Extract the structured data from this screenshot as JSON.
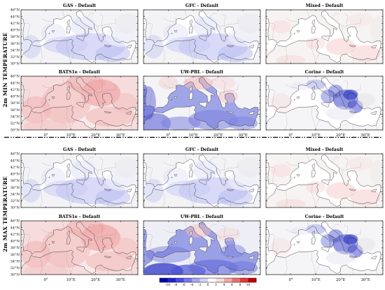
{
  "sections": [
    {
      "label": "2m MIN TEMPERATURE",
      "rows": [
        [
          {
            "title": "GAS - Default",
            "scheme": "cool-light"
          },
          {
            "title": "GFC - Default",
            "scheme": "cool-light"
          },
          {
            "title": "Mixed - Default",
            "scheme": "warm-light"
          }
        ],
        [
          {
            "title": "BATS1e - Default",
            "scheme": "warm"
          },
          {
            "title": "UW-PBL - Default",
            "scheme": "mixed-cool-sea"
          },
          {
            "title": "Corine - Default",
            "scheme": "corine"
          }
        ]
      ]
    },
    {
      "label": "2m MAX TEMPERATURE",
      "rows": [
        [
          {
            "title": "GAS - Default",
            "scheme": "cool-light"
          },
          {
            "title": "GFC - Default",
            "scheme": "cool-light"
          },
          {
            "title": "Mixed - Default",
            "scheme": "warm-light"
          }
        ],
        [
          {
            "title": "BATS1e - Default",
            "scheme": "warm"
          },
          {
            "title": "UW-PBL - Default",
            "scheme": "cool-strong"
          },
          {
            "title": "Corine - Default",
            "scheme": "corine"
          }
        ]
      ]
    }
  ],
  "lat_labels": [
    "46°N",
    "44°N",
    "42°N",
    "40°N",
    "38°N",
    "36°N",
    "34°N",
    "32°N",
    "30°N"
  ],
  "lon_labels": [
    "0°",
    "10°E",
    "20°E",
    "30°E"
  ],
  "colorbar": {
    "ticks": [
      "-10",
      "-8",
      "-6",
      "-4",
      "-2",
      "0",
      "2",
      "4",
      "6",
      "8",
      "10"
    ],
    "colors": [
      "#0000b0",
      "#2222d0",
      "#4a4ae4",
      "#7878ee",
      "#a8a8f4",
      "#d4d4fa",
      "#ffffff",
      "#fadada",
      "#f4a8a8",
      "#ee7070",
      "#e43a3a",
      "#c40000"
    ]
  }
}
